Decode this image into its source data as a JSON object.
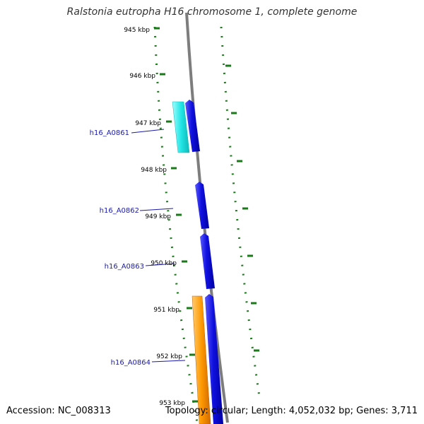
{
  "title": "Ralstonia eutropha H16 chromosome 1, complete genome",
  "footer": {
    "accession": "Accession: NC_008313",
    "summary": "Topology: circular; Length: 4,052,032 bp; Genes: 3,711"
  },
  "ruler": {
    "unit": "kbp",
    "ticks": [
      {
        "label": "945 kbp"
      },
      {
        "label": "946 kbp"
      },
      {
        "label": "947 kbp"
      },
      {
        "label": "948 kbp"
      },
      {
        "label": "949 kbp"
      },
      {
        "label": "950 kbp"
      },
      {
        "label": "951 kbp"
      },
      {
        "label": "952 kbp"
      },
      {
        "label": "953 kbp"
      }
    ]
  },
  "genes": [
    {
      "label": "h16_A0861"
    },
    {
      "label": "h16_A0862"
    },
    {
      "label": "h16_A0863"
    },
    {
      "label": "h16_A0864"
    }
  ],
  "colors": {
    "backbone": "#808080",
    "gc_track": "#1a7a1a",
    "forward_cds": "#1010e0",
    "reverse_cyan": "#22e6e6",
    "reverse_orange": "#ff9900",
    "gene_label": "#1a1aa8",
    "tick_label": "#000000"
  }
}
